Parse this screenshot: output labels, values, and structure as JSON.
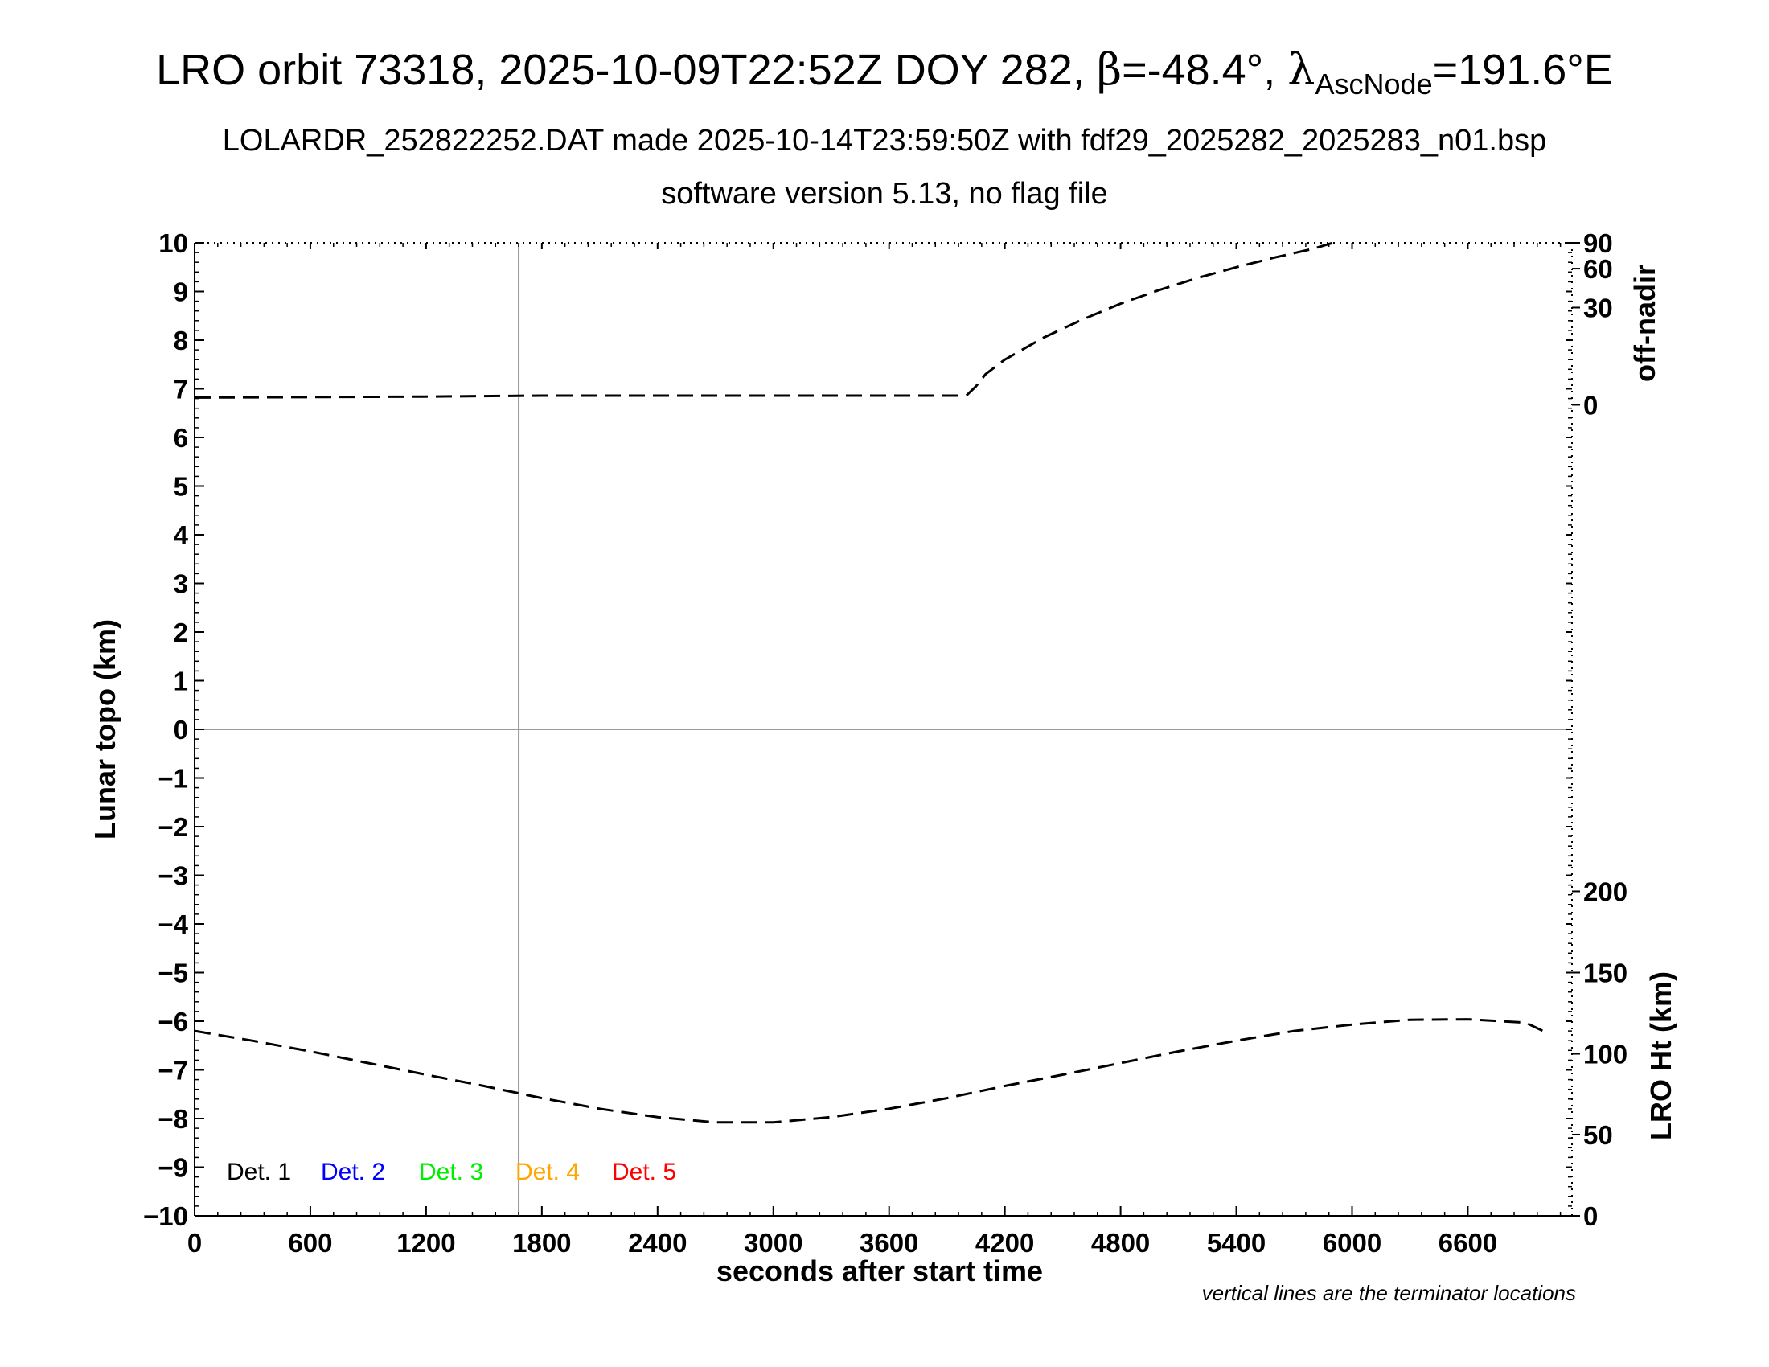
{
  "chart_data": {
    "type": "line",
    "title": {
      "main": "LRO orbit 73318, 2025-10-09T22:52Z DOY 282, ",
      "beta_symbol": "β",
      "beta_text": "=-48.4°, ",
      "lambda_symbol": "λ",
      "lambda_subscript": "AscNode",
      "lambda_text": "=191.6°E"
    },
    "subtitle": "LOLARDR_252822252.DAT made 2025-10-14T23:59:50Z with fdf29_2025282_2025283_n01.bsp",
    "subtitle2": "software version 5.13, no flag file",
    "xlabel": "seconds after start time",
    "ylabel_left": "Lunar topo (km)",
    "ylabel_right_top": "off-nadir",
    "ylabel_right_bottom": "LRO Ht (km)",
    "xlim": [
      0,
      7140
    ],
    "ylim": [
      -10,
      10
    ],
    "x_ticks": [
      "0",
      "600",
      "1200",
      "1800",
      "2400",
      "3000",
      "3600",
      "4200",
      "4800",
      "5400",
      "6000",
      "6600"
    ],
    "x_tick_values": [
      0,
      600,
      1200,
      1800,
      2400,
      3000,
      3600,
      4200,
      4800,
      5400,
      6000,
      6600
    ],
    "y_ticks": [
      "10",
      "9",
      "8",
      "7",
      "6",
      "5",
      "4",
      "3",
      "2",
      "1",
      "0",
      "−1",
      "−2",
      "−3",
      "−4",
      "−5",
      "−6",
      "−7",
      "−8",
      "−9",
      "−10"
    ],
    "y_tick_values": [
      10,
      9,
      8,
      7,
      6,
      5,
      4,
      3,
      2,
      1,
      0,
      -1,
      -2,
      -3,
      -4,
      -5,
      -6,
      -7,
      -8,
      -9,
      -10
    ],
    "right_top_ticks": [
      "90",
      "60",
      "30",
      "0"
    ],
    "right_top_tick_positions": [
      10,
      9.47,
      8.67,
      6.67
    ],
    "right_bottom_ticks": [
      "200",
      "150",
      "100",
      "50",
      "0"
    ],
    "right_bottom_tick_positions": [
      -3.33,
      -5.0,
      -6.67,
      -8.33,
      -10
    ],
    "terminator_x": [
      1680
    ],
    "series": [
      {
        "label": "off-nadir",
        "x": [
          0,
          600,
          1200,
          1800,
          2400,
          3000,
          3600,
          4000,
          4050,
          4100,
          4200,
          4400,
          4600,
          4800,
          5000,
          5200,
          5400,
          5600,
          5800,
          5900
        ],
        "y": [
          6.82,
          6.83,
          6.84,
          6.86,
          6.86,
          6.86,
          6.86,
          6.86,
          7.05,
          7.3,
          7.6,
          8.05,
          8.42,
          8.75,
          9.03,
          9.28,
          9.5,
          9.7,
          9.88,
          10.0
        ]
      },
      {
        "label": "LRO Ht",
        "x": [
          0,
          300,
          600,
          900,
          1200,
          1500,
          1800,
          2100,
          2400,
          2700,
          3000,
          3300,
          3600,
          3900,
          4200,
          4500,
          4800,
          5100,
          5400,
          5700,
          6000,
          6300,
          6600,
          6900,
          7000
        ],
        "y": [
          -6.2,
          -6.4,
          -6.62,
          -6.86,
          -7.1,
          -7.33,
          -7.58,
          -7.8,
          -7.97,
          -8.08,
          -8.08,
          -7.97,
          -7.8,
          -7.58,
          -7.33,
          -7.1,
          -6.86,
          -6.62,
          -6.4,
          -6.2,
          -6.07,
          -5.97,
          -5.96,
          -6.03,
          -6.22
        ]
      }
    ],
    "legend": [
      {
        "label": "Det. 1",
        "color": "#000000"
      },
      {
        "label": "Det. 2",
        "color": "#0000ff"
      },
      {
        "label": "Det. 3",
        "color": "#00ee00"
      },
      {
        "label": "Det. 4",
        "color": "#ffa500"
      },
      {
        "label": "Det. 5",
        "color": "#ff0000"
      }
    ],
    "note": "vertical lines are the terminator locations",
    "grid": false
  }
}
